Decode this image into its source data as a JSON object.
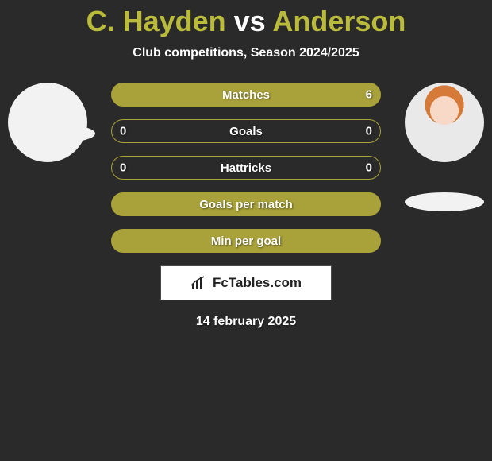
{
  "title": {
    "player1": "C. Hayden",
    "vs": "vs",
    "player2": "Anderson",
    "color": "#babb3a"
  },
  "subtitle": "Club competitions, Season 2024/2025",
  "stats": {
    "border_color": "#a9a23a",
    "fill_color": "#a9a23a",
    "rows": [
      {
        "label": "Matches",
        "left": "",
        "right": "6",
        "right_fill_pct": 100
      },
      {
        "label": "Goals",
        "left": "0",
        "right": "0",
        "right_fill_pct": 0
      },
      {
        "label": "Hattricks",
        "left": "0",
        "right": "0",
        "right_fill_pct": 0
      },
      {
        "label": "Goals per match",
        "left": "",
        "right": "",
        "right_fill_pct": 100
      },
      {
        "label": "Min per goal",
        "left": "",
        "right": "",
        "right_fill_pct": 100
      }
    ]
  },
  "players": {
    "left_avatar_bg": "#f2f2f2",
    "right_avatar_bg": "#e9e9e9"
  },
  "logo": {
    "text": "FcTables.com"
  },
  "date": "14 february 2025",
  "background": "#2a2a2a"
}
